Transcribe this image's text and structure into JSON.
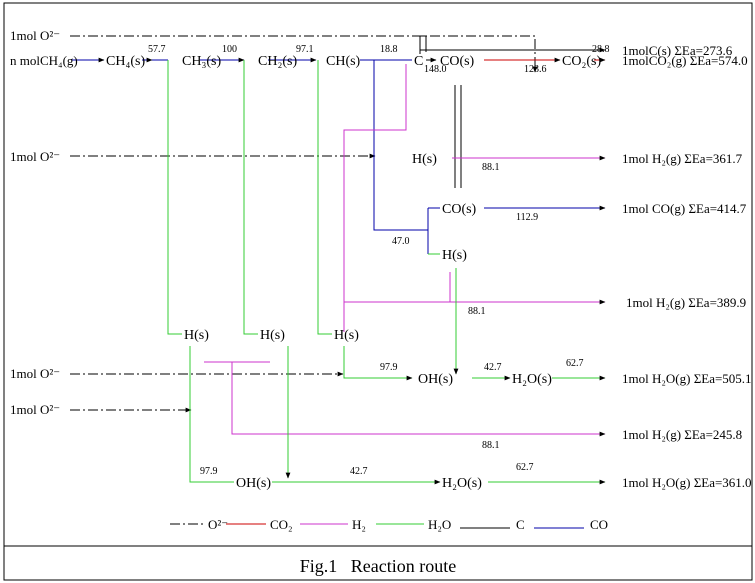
{
  "sources": {
    "o2_1": "1mol O²⁻",
    "ch4g": "n molCH₄(g)",
    "o2_2": "1mol O²⁻",
    "o2_3": "1mol O²⁻",
    "o2_4": "1mol O²⁻"
  },
  "nodes": {
    "ch4s": "CH₄(s)",
    "ch3s": "CH₃(s)",
    "ch2s": "CH₂(s)",
    "chs": "CH(s)",
    "c": "C",
    "co_s1": "CO(s)",
    "co2_s": "CO₂(s)",
    "h_s_mid": "H(s)",
    "co_s2": "CO(s)",
    "h_s_right": "H(s)",
    "h_s_1": "H(s)",
    "h_s_2": "H(s)",
    "h_s_3": "H(s)",
    "oh_s_top": "OH(s)",
    "h2o_s_top": "H₂O(s)",
    "oh_s_bot": "OH(s)",
    "h2o_s_bot": "H₂O(s)"
  },
  "products": {
    "c_s": "1molC(s) ΣEa=273.6",
    "co2_g": "1molCO₂(g) ΣEa=574.0",
    "h2_g_1": "1mol H₂(g) ΣEa=361.7",
    "co_g": "1mol CO(g) ΣEa=414.7",
    "h2_g_2": "1mol H₂(g) ΣEa=389.9",
    "h2o_g_1": "1mol H₂O(g) ΣEa=505.1",
    "h2_g_3": "1mol H₂(g) ΣEa=245.8",
    "h2o_g_2": "1mol H₂O(g) ΣEa=361.0"
  },
  "energies": {
    "e1": "57.7",
    "e2": "100",
    "e3": "97.1",
    "e4": "18.8",
    "e5": "148.0",
    "e6": "123.6",
    "e7": "28.8",
    "e8": "88.1",
    "e9": "112.9",
    "e10": "47.0",
    "e11": "88.1",
    "e12": "97.9",
    "e13": "42.7",
    "e14": "62.7",
    "e15": "88.1",
    "e16": "97.9",
    "e17": "42.7",
    "e18": "62.7"
  },
  "legend": {
    "o2": "O²⁻",
    "co2": "CO₂",
    "h2": "H₂",
    "h2o": "H₂O",
    "c": "C",
    "co": "CO"
  },
  "colors": {
    "o2": "#000000",
    "co2": "#cc0000",
    "h2": "#cc33cc",
    "h2o": "#33cc33",
    "c": "#000000",
    "co": "#0000aa"
  },
  "caption": "Fig.1   Reaction route"
}
